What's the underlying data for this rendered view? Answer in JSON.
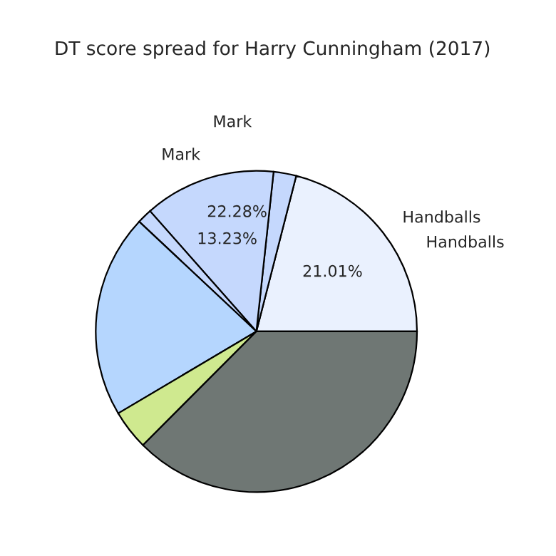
{
  "chart_data": {
    "type": "pie",
    "title": "DT score spread for Harry Cunningham (2017)",
    "categories": [
      "Handballs",
      null,
      "Mark",
      null,
      null,
      null,
      null
    ],
    "values": [
      21.01,
      2.28,
      13.23,
      1.5,
      20.5,
      4.0,
      37.48
    ],
    "value_labels": [
      "21.01%",
      null,
      "13.23%",
      null,
      null,
      null,
      null
    ],
    "colors": [
      "#eaf1fe",
      "#c5d8fd",
      "#c5d8fd",
      "#c5d8fd",
      "#b5d6fe",
      "#cfe98f",
      "#6f7774"
    ],
    "annotations": [
      "Handballs",
      "Mark",
      "22.28%"
    ],
    "legend": false
  }
}
